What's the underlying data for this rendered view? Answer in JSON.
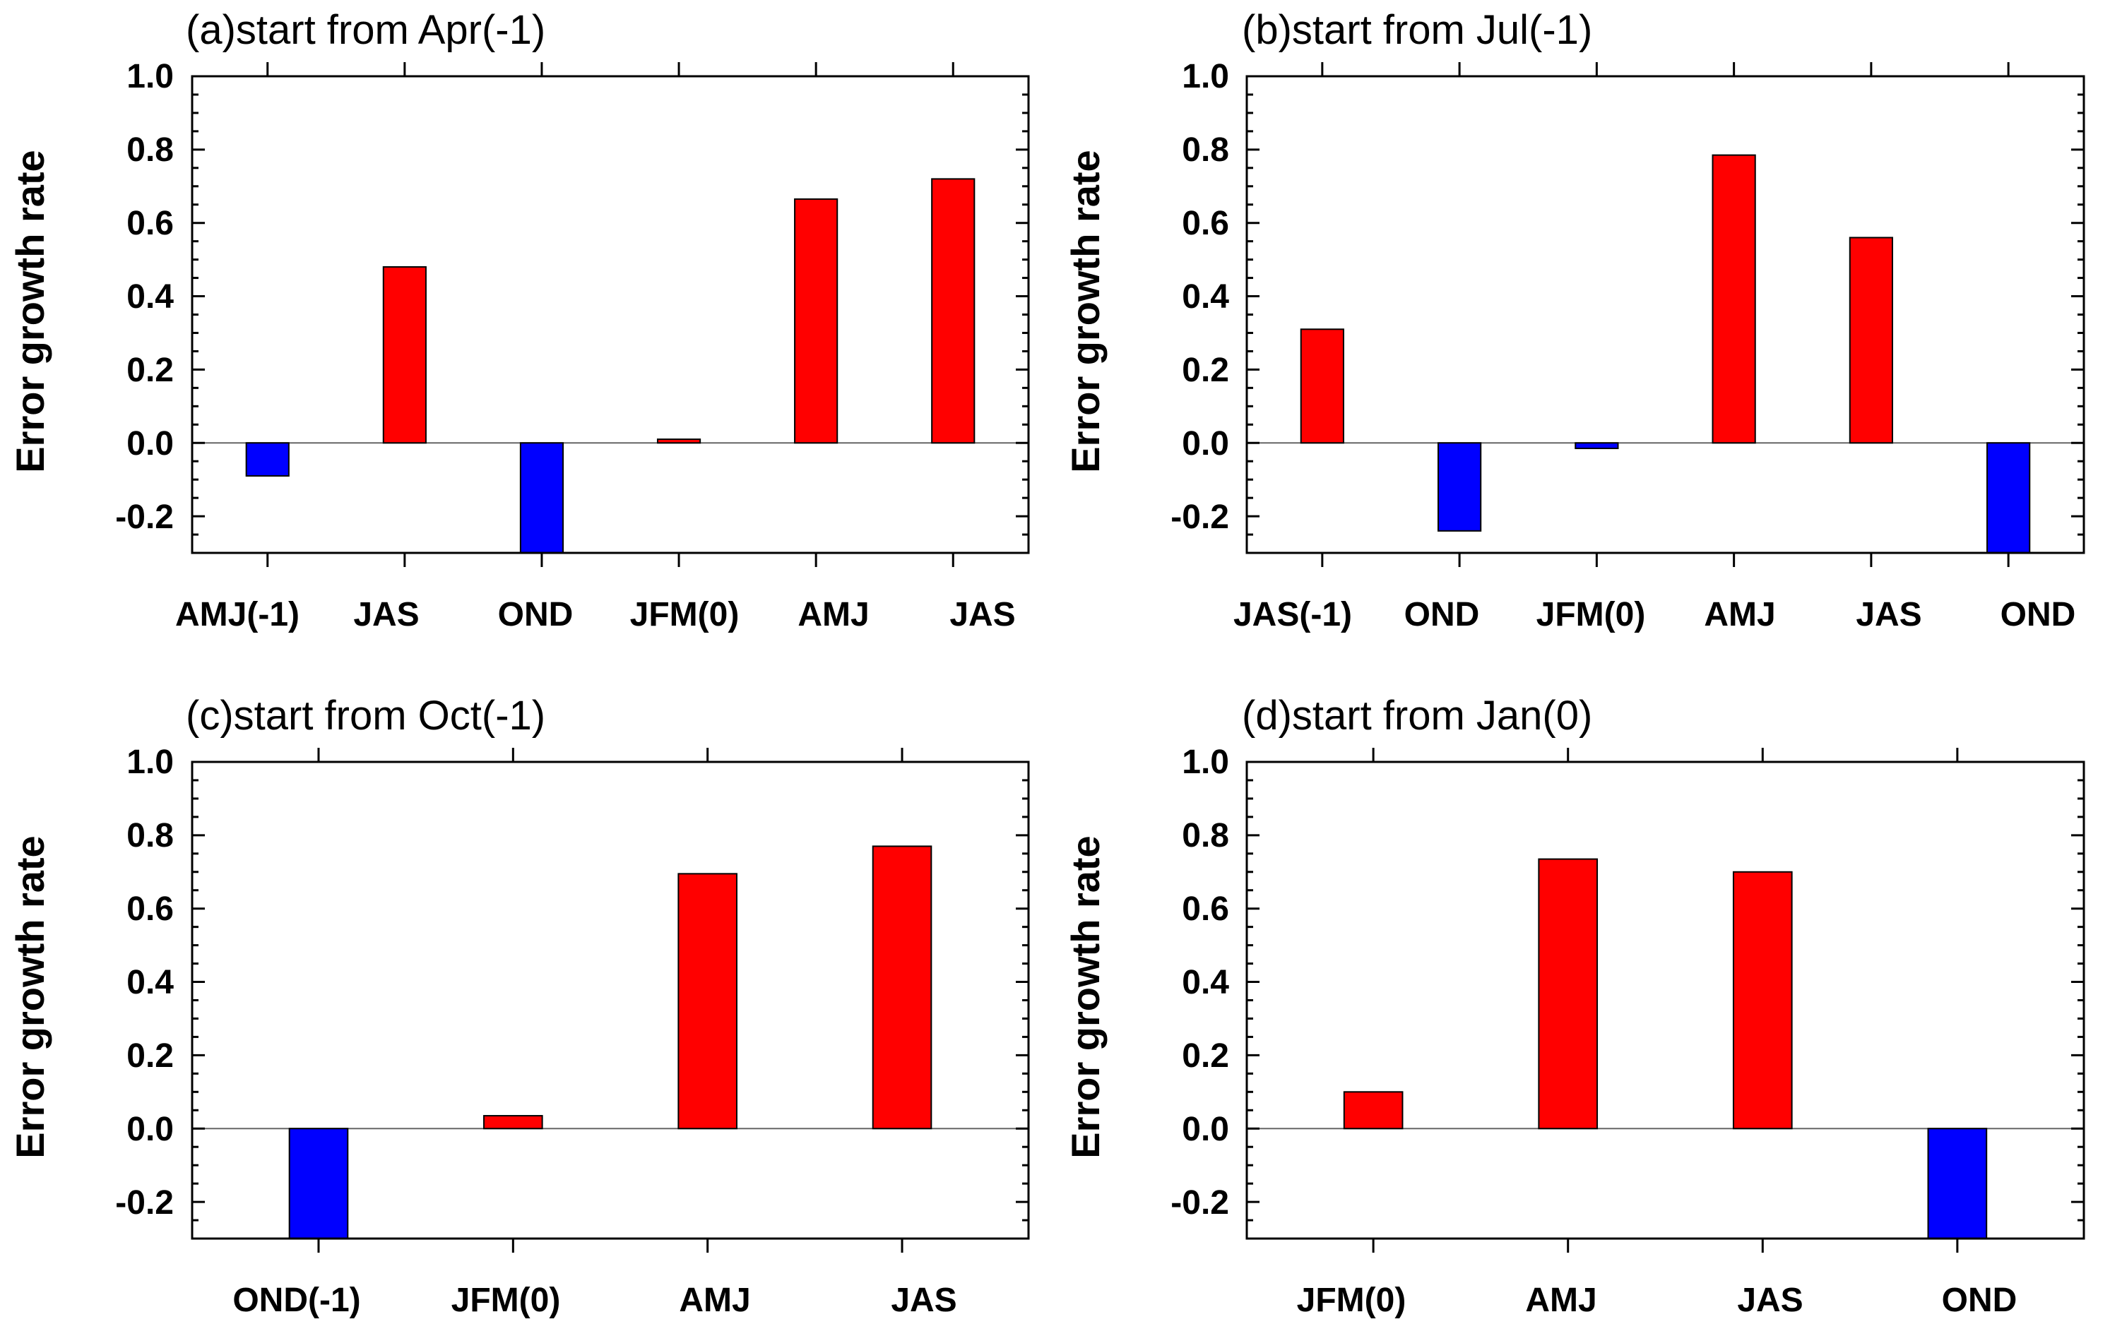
{
  "chart_data": [
    {
      "type": "bar",
      "title": "(a)start from Apr(-1)",
      "ylabel": "Error growth rate",
      "xlabel": "",
      "ylim": [
        -0.3,
        1.0
      ],
      "yticks": [
        "1.0",
        "0.8",
        "0.6",
        "0.4",
        "0.2",
        "0.0",
        "-0.2"
      ],
      "categories": [
        "AMJ(-1)",
        "JAS",
        "OND",
        "JFM(0)",
        "AMJ",
        "JAS"
      ],
      "values": [
        -0.09,
        0.48,
        -0.3,
        0.01,
        0.665,
        0.72
      ]
    },
    {
      "type": "bar",
      "title": "(b)start from Jul(-1)",
      "ylabel": "Error growth rate",
      "xlabel": "",
      "ylim": [
        -0.3,
        1.0
      ],
      "yticks": [
        "1.0",
        "0.8",
        "0.6",
        "0.4",
        "0.2",
        "0.0",
        "-0.2"
      ],
      "categories": [
        "JAS(-1)",
        "OND",
        "JFM(0)",
        "AMJ",
        "JAS",
        "OND"
      ],
      "values": [
        0.31,
        -0.24,
        -0.015,
        0.785,
        0.56,
        -0.3
      ]
    },
    {
      "type": "bar",
      "title": "(c)start from Oct(-1)",
      "ylabel": "Error growth rate",
      "xlabel": "",
      "ylim": [
        -0.3,
        1.0
      ],
      "yticks": [
        "1.0",
        "0.8",
        "0.6",
        "0.4",
        "0.2",
        "0.0",
        "-0.2"
      ],
      "categories": [
        "OND(-1)",
        "JFM(0)",
        "AMJ",
        "JAS"
      ],
      "values": [
        -0.3,
        0.035,
        0.695,
        0.77
      ]
    },
    {
      "type": "bar",
      "title": "(d)start from Jan(0)",
      "ylabel": "Error growth rate",
      "xlabel": "",
      "ylim": [
        -0.3,
        1.0
      ],
      "yticks": [
        "1.0",
        "0.8",
        "0.6",
        "0.4",
        "0.2",
        "0.0",
        "-0.2"
      ],
      "categories": [
        "JFM(0)",
        "AMJ",
        "JAS",
        "OND"
      ],
      "values": [
        0.1,
        0.735,
        0.7,
        -0.3
      ]
    }
  ],
  "colors": {
    "positive": "#ff0000",
    "negative": "#0000ff",
    "axis": "#000000",
    "zero_line": "#666666"
  }
}
